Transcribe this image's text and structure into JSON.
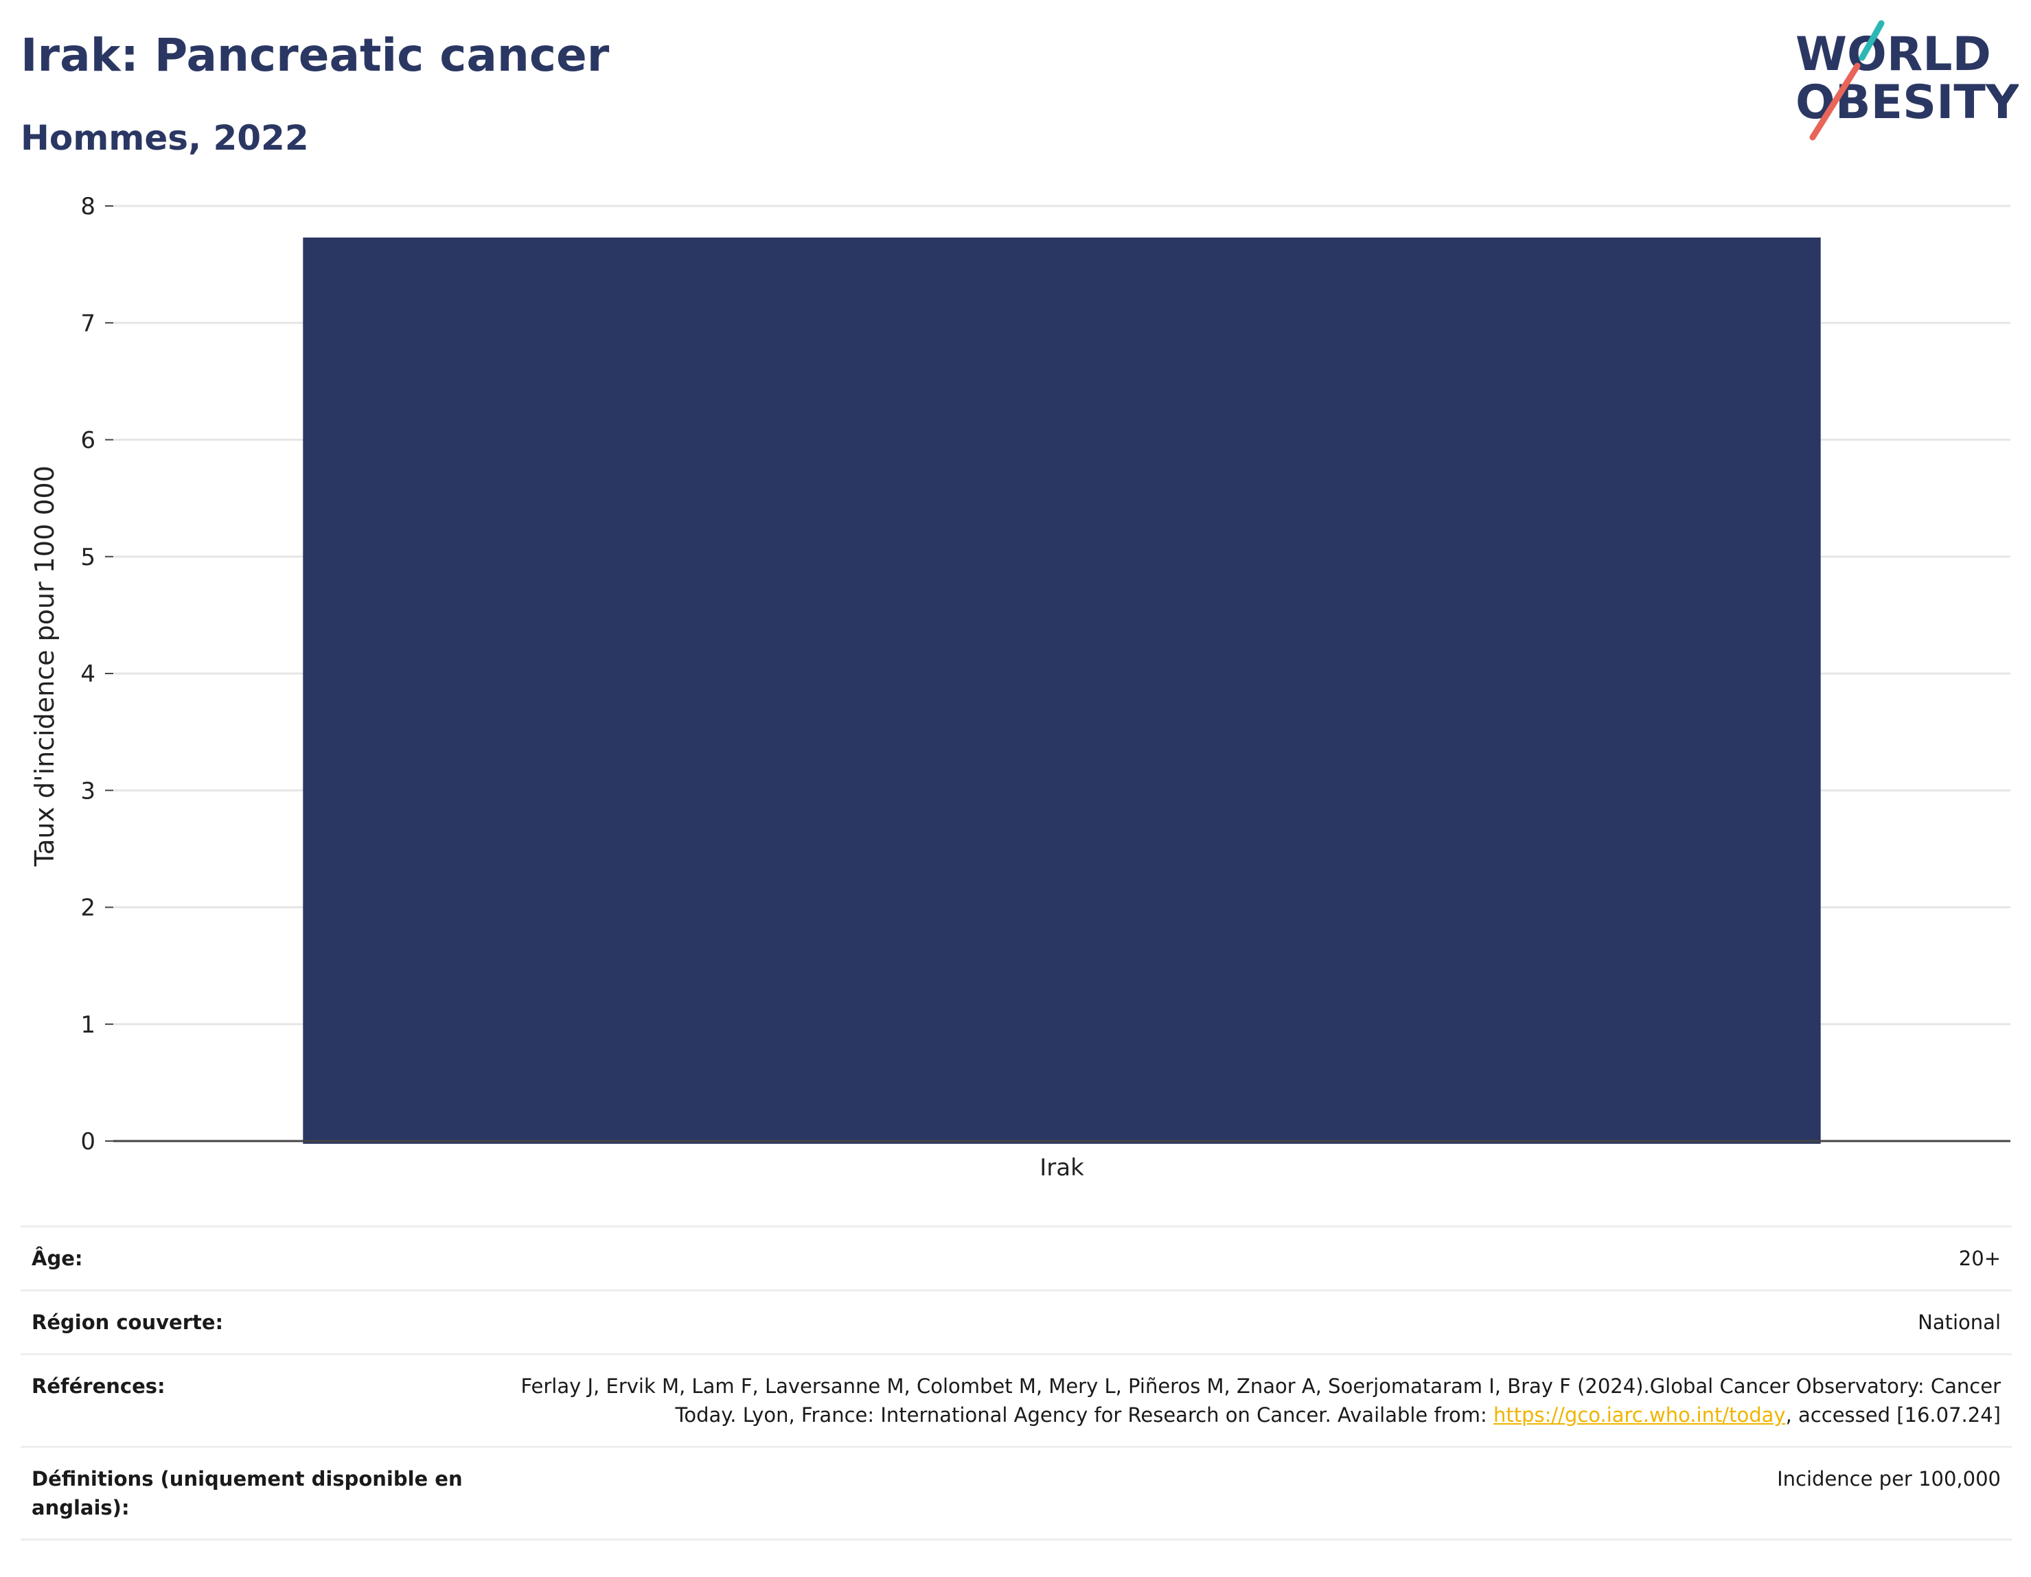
{
  "header": {
    "title": "Irak: Pancreatic cancer",
    "subtitle": "Hommes, 2022"
  },
  "logo": {
    "line1": "WORLD",
    "line2": "OBESITY",
    "colors": {
      "text": "#2b3763",
      "accent_teal": "#2bb7b3",
      "accent_coral": "#e8655a"
    }
  },
  "chart_data": {
    "type": "bar",
    "categories": [
      "Irak"
    ],
    "values": [
      7.73
    ],
    "title": "Irak: Pancreatic cancer",
    "subtitle": "Hommes, 2022",
    "xlabel": "",
    "ylabel": "Taux d'incidence pour 100 000",
    "ylim": [
      0,
      8
    ],
    "yticks": [
      0,
      1,
      2,
      3,
      4,
      5,
      6,
      7,
      8
    ],
    "grid": true,
    "bar_color": "#2b3763"
  },
  "info": {
    "rows": [
      {
        "key": "Âge:",
        "value": "20+"
      },
      {
        "key": "Région couverte:",
        "value": "National"
      },
      {
        "key": "Références:",
        "value_before": "Ferlay J, Ervik M, Lam F, Laversanne M, Colombet M, Mery L, Piñeros M, Znaor A, Soerjomataram I, Bray F (2024).Global Cancer Observatory: Cancer Today. Lyon, France: International Agency for Research on Cancer. Available from: ",
        "link": "https://gco.iarc.who.int/today",
        "value_after": ", accessed [16.07.24]"
      },
      {
        "key": "Définitions (uniquement disponible en anglais):",
        "value": "Incidence per 100,000"
      }
    ]
  }
}
